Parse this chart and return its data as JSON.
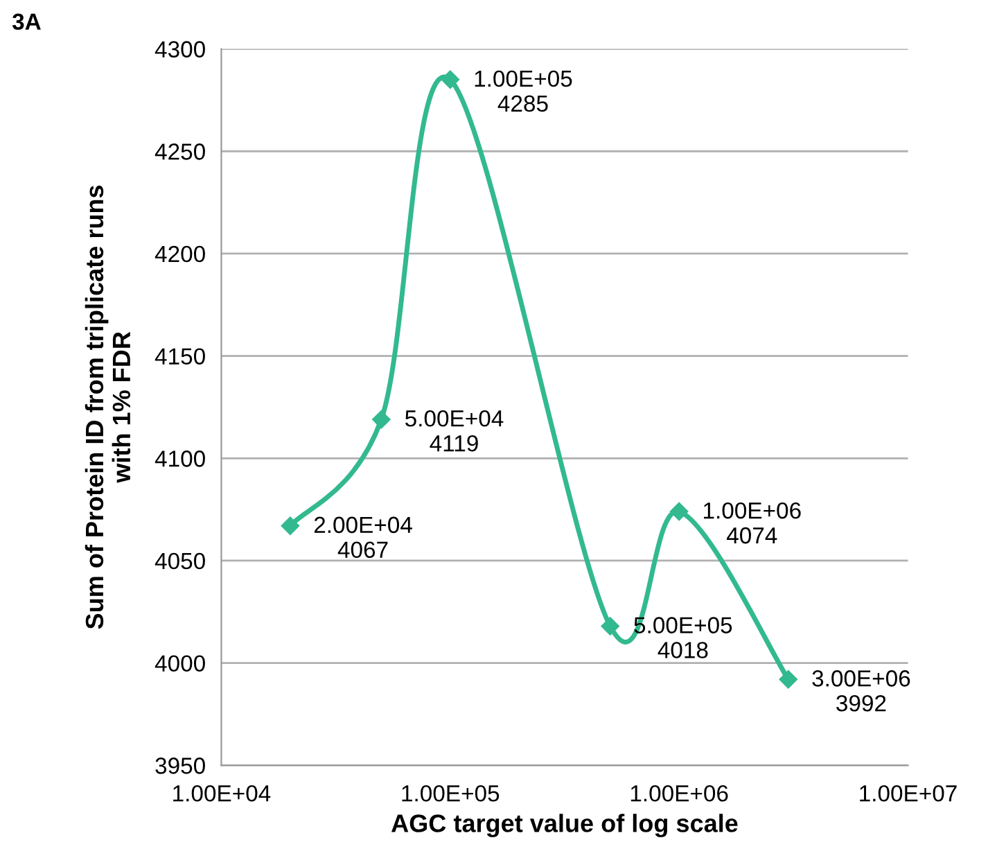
{
  "chart_data": {
    "type": "line",
    "x": [
      20000,
      50000,
      100000,
      500000,
      1000000,
      3000000
    ],
    "series": [
      {
        "color": "#33b98f",
        "values": [
          4067,
          4119,
          4285,
          4018,
          4074,
          3992
        ],
        "value_labels": [
          "2.00E+04\n4067",
          "5.00E+04\n4119",
          "1.00E+05\n4285",
          "5.00E+05\n4018",
          "1.00E+06\n4074",
          "3.00E+06\n3992"
        ]
      }
    ],
    "log": "x",
    "xlim": [
      10000,
      10000000
    ],
    "xticks": [
      {
        "value": 10000,
        "label": "1.00E+04"
      },
      {
        "value": 100000,
        "label": "1.00E+05"
      },
      {
        "value": 1000000,
        "label": "1.00E+06"
      },
      {
        "value": 10000000,
        "label": "1.00E+07"
      }
    ],
    "ylim": [
      3950,
      4300
    ],
    "yticks": [
      3950,
      4000,
      4050,
      4100,
      4150,
      4200,
      4250,
      4300
    ],
    "grid": "y",
    "marker": "diamond",
    "line_style": "solid",
    "xlabel": "AGC target value of log scale",
    "ylabel": "Sum of Protein ID from triplicate runs\nwith 1% FDR",
    "annotations": [
      "3A"
    ]
  }
}
